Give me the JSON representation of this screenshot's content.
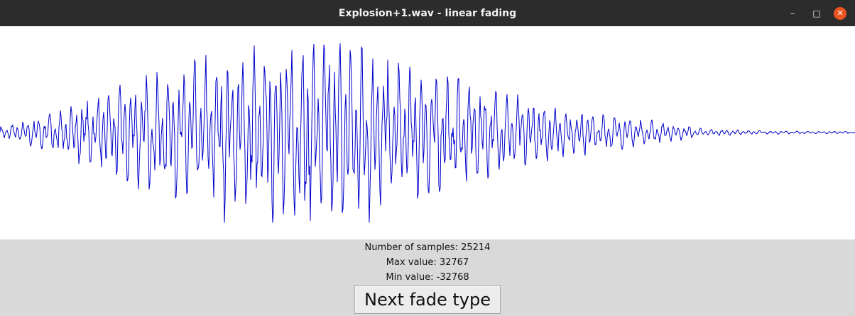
{
  "window": {
    "title": "Explosion+1.wav - linear fading",
    "controls": {
      "minimize": "–",
      "maximize": "□",
      "close": "✕"
    }
  },
  "waveform": {
    "line_color": "#0000cc",
    "background": "#ffffff"
  },
  "stats": {
    "samples_text": "Number of samples: 25214",
    "max_text": "Max value: 32767",
    "min_text": "Min value: -32768"
  },
  "actions": {
    "next_fade_label": "Next fade type"
  },
  "colors": {
    "titlebar": "#2c2c2c",
    "close_button": "#e95420",
    "panel": "#d9d9d9"
  }
}
